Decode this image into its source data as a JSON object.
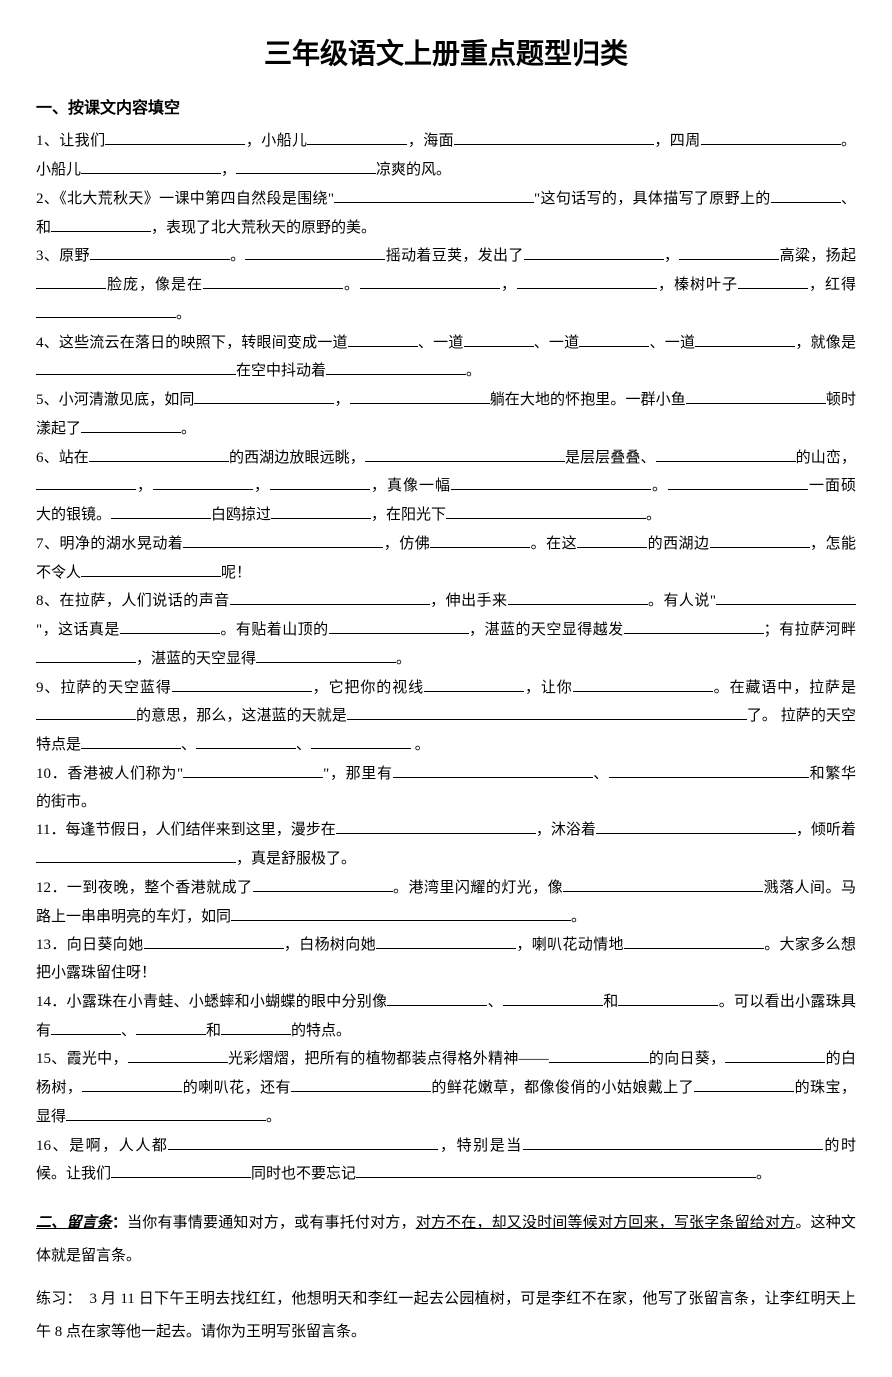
{
  "title": "三年级语文上册重点题型归类",
  "section1": {
    "heading": "一、按课文内容填空",
    "items": {
      "q1_a": "1、让我们",
      "q1_b": "，小船儿",
      "q1_c": "，海面",
      "q1_d": "，四周",
      "q1_e": "。小船儿",
      "q1_f": "，",
      "q1_g": "凉爽的风。",
      "q2_a": "2、《北大荒秋天》一课中第四自然段是围绕\"",
      "q2_b": "\"这句话写的，具体描写了原野上的",
      "q2_c": "、和",
      "q2_d": "，表现了北大荒秋天的原野的美。",
      "q3_a": "3、原野",
      "q3_b": "。",
      "q3_c": "摇动着豆荚，发出了",
      "q3_d": "，",
      "q3_e": "高粱，扬起",
      "q3_f": "脸庞，像是在",
      "q3_g": "。",
      "q3_h": "，",
      "q3_i": "，榛树叶子",
      "q3_j": "，红得",
      "q3_k": "。",
      "q4_a": "4、这些流云在落日的映照下，转眼间变成一道",
      "q4_b": "、一道",
      "q4_c": "、一道",
      "q4_d": "、一道",
      "q4_e": "，就像是",
      "q4_f": "在空中抖动着",
      "q4_g": "。",
      "q5_a": "5、小河清澈见底，如同",
      "q5_b": "，",
      "q5_c": "躺在大地的怀抱里。一群小鱼",
      "q5_d": "顿时漾起了",
      "q5_e": "。",
      "q6_a": "6、站在",
      "q6_b": "的西湖边放眼远眺，",
      "q6_c": "是层层叠叠、",
      "q6_d": "的山峦，",
      "q6_e": "，",
      "q6_f": "，",
      "q6_g": "，真像一幅",
      "q6_h": "。",
      "q6_i": "一面硕大的银镜。",
      "q6_j": "白鸥掠过",
      "q6_k": "，在阳光下",
      "q6_l": "。",
      "q7_a": "7、明净的湖水晃动着",
      "q7_b": "，仿佛",
      "q7_c": "。在这",
      "q7_d": "的西湖边",
      "q7_e": "，怎能不令人",
      "q7_f": "呢！",
      "q8_a": "8、在拉萨，人们说话的声音",
      "q8_b": "，伸出手来",
      "q8_c": "。有人说\"",
      "q8_d": "\"，这话真是",
      "q8_e": "。有贴着山顶的",
      "q8_f": "，湛蓝的天空显得越发",
      "q8_g": "；有拉萨河畔",
      "q8_h": "，湛蓝的天空显得",
      "q8_i": "。",
      "q9_a": "9、拉萨的天空蓝得",
      "q9_b": "，它把你的视线",
      "q9_c": "，让你",
      "q9_d": "。在藏语中，拉萨是",
      "q9_e": "的意思，那么，这湛蓝的天就是",
      "q9_f": "了。 拉萨的天空特点是",
      "q9_g": "、",
      "q9_h": "、",
      "q9_i": " 。",
      "q10_a": "10．香港被人们称为\"",
      "q10_b": "\"，那里有",
      "q10_c": "、",
      "q10_d": "和繁华的街市。",
      "q11_a": "11．每逢节假日，人们结伴来到这里，漫步在",
      "q11_b": "，沐浴着",
      "q11_c": "，倾听着",
      "q11_d": "，真是舒服极了。",
      "q12_a": "12．一到夜晚，整个香港就成了",
      "q12_b": "。港湾里闪耀的灯光，像",
      "q12_c": "溅落人间。马路上一串串明亮的车灯，如同",
      "q12_d": "。",
      "q13_a": "13．向日葵向她",
      "q13_b": "，白杨树向她",
      "q13_c": "，喇叭花动情地",
      "q13_d": "。大家多么想把小露珠留住呀！",
      "q14_a": "14．小露珠在小青蛙、小蟋蟀和小蝴蝶的眼中分别像",
      "q14_b": "、",
      "q14_c": "和",
      "q14_d": "。可以看出小露珠具有",
      "q14_e": "、",
      "q14_f": "和",
      "q14_g": "的特点。",
      "q15_a": "15、霞光中，",
      "q15_b": "光彩熠熠，把所有的植物都装点得格外精神——",
      "q15_c": "的向日葵，",
      "q15_d": "的白杨树，",
      "q15_e": "的喇叭花，还有",
      "q15_f": "的鲜花嫩草，都像俊俏的小姑娘戴上了",
      "q15_g": "的珠宝，显得",
      "q15_h": "。",
      "q16_a": "16、是啊，人人都",
      "q16_b": "，特别是当",
      "q16_c": "的时候。让我们",
      "q16_d": "同时也不要忘记",
      "q16_e": "。"
    }
  },
  "section2": {
    "heading_prefix": "二、",
    "heading_label": "留言条",
    "heading_suffix": "：",
    "desc_a": "当你有事情要通知对方，或有事托付对方，",
    "desc_b": "对方不在，却又没时间等候对方回来，写张字条留给对方",
    "desc_c": "。这种文体就是留言条。",
    "practice": "练习：　3 月 11 日下午王明去找红红，他想明天和李红一起去公园植树，可是李红不在家，他写了张留言条，让李红明天上午 8 点在家等他一起去。请你为王明写张留言条。"
  }
}
